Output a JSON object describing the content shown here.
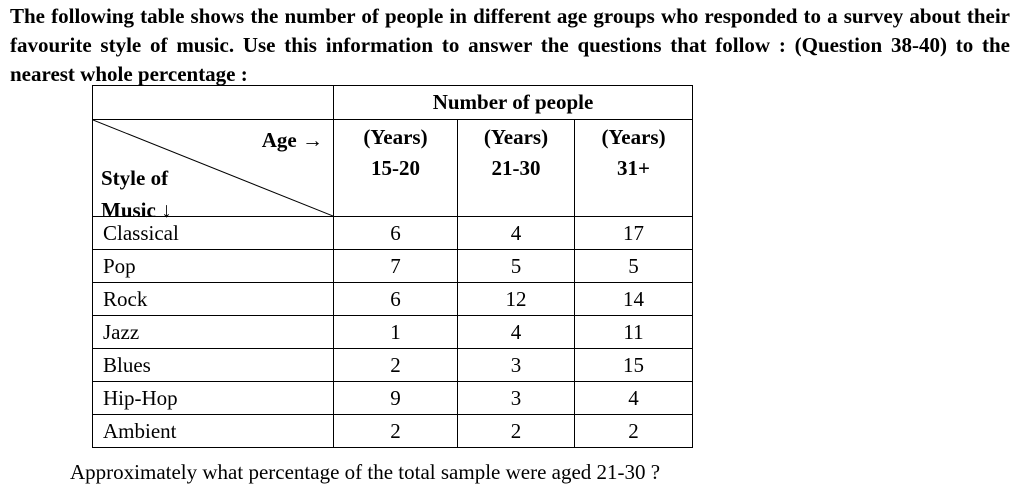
{
  "intro": "The following table shows the number of people in different age groups who responded to a survey about their favourite style of music. Use this information to answer the questions that follow : (Question 38-40) to the nearest whole percentage :",
  "table": {
    "span_header": "Number of people",
    "age_label": "Age →",
    "style_label_line1": "Style of",
    "style_label_line2": "Music ↓",
    "columns": [
      {
        "unit": "(Years)",
        "range": "15-20"
      },
      {
        "unit": "(Years)",
        "range": "21-30"
      },
      {
        "unit": "(Years)",
        "range": "31+"
      }
    ],
    "rows": [
      {
        "style": "Classical",
        "values": [
          "6",
          "4",
          "17"
        ]
      },
      {
        "style": "Pop",
        "values": [
          "7",
          "5",
          "5"
        ]
      },
      {
        "style": "Rock",
        "values": [
          "6",
          "12",
          "14"
        ]
      },
      {
        "style": "Jazz",
        "values": [
          "1",
          "4",
          "11"
        ]
      },
      {
        "style": "Blues",
        "values": [
          "2",
          "3",
          "15"
        ]
      },
      {
        "style": "Hip-Hop",
        "values": [
          "9",
          "3",
          "4"
        ]
      },
      {
        "style": "Ambient",
        "values": [
          "2",
          "2",
          "2"
        ]
      }
    ]
  },
  "question": "Approximately what percentage of the total sample were aged 21-30 ?"
}
